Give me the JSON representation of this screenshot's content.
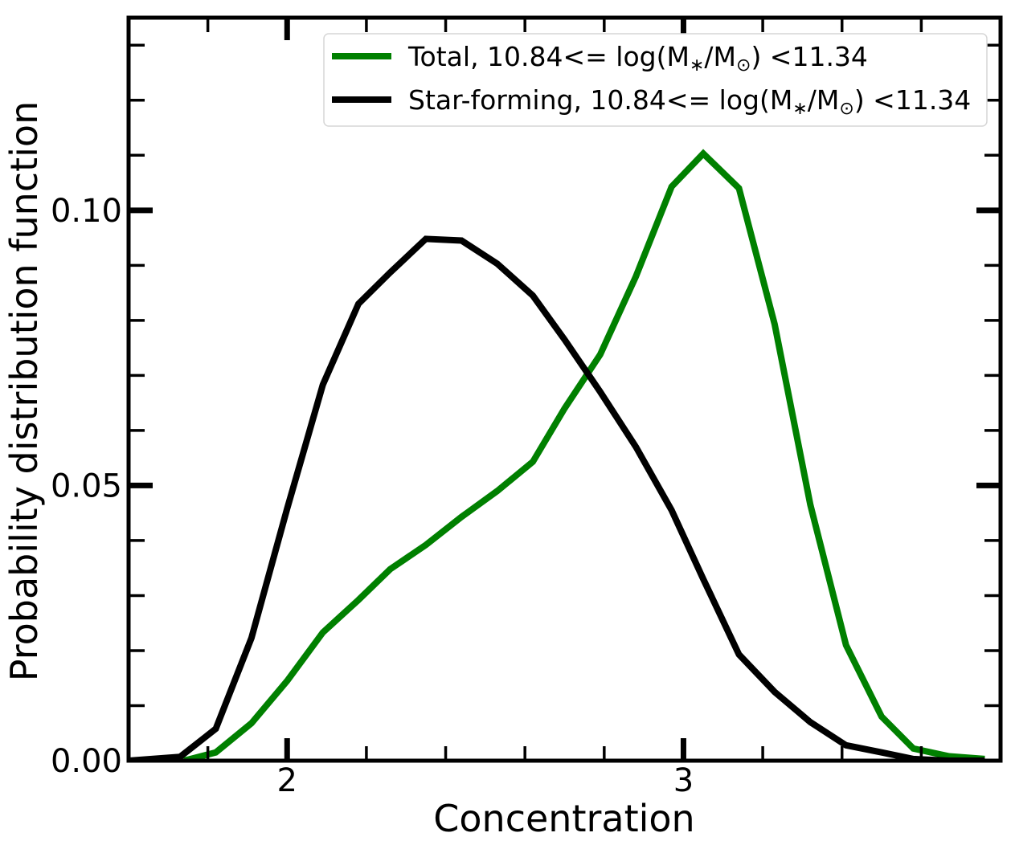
{
  "chart_data": {
    "type": "line",
    "title": "",
    "xlabel": "Concentration",
    "ylabel": "Probability distribution function",
    "xlim": [
      1.6,
      3.8
    ],
    "ylim": [
      0.0,
      0.135
    ],
    "grid": false,
    "legend_position": "top-right",
    "x_ticks": [
      2,
      3
    ],
    "x_tick_labels": [
      "2",
      "3"
    ],
    "y_ticks": [
      0.0,
      0.05,
      0.1
    ],
    "y_tick_labels": [
      "0.00",
      "0.05",
      "0.10"
    ],
    "series": [
      {
        "name": "Total, 10.84<= log(M*/M⊙) <11.34",
        "legend_prefix": "Total, 10.84<= log(M",
        "color": "#008000",
        "x": [
          1.74,
          1.82,
          1.91,
          2.0,
          2.09,
          2.18,
          2.26,
          2.35,
          2.44,
          2.53,
          2.62,
          2.7,
          2.79,
          2.88,
          2.97,
          3.05,
          3.14,
          3.23,
          3.32,
          3.41,
          3.5,
          3.58,
          3.67,
          3.76
        ],
        "y": [
          0.0,
          0.0015,
          0.0068,
          0.0145,
          0.0233,
          0.0292,
          0.0348,
          0.0392,
          0.0443,
          0.049,
          0.0543,
          0.064,
          0.0738,
          0.088,
          0.1043,
          0.1103,
          0.104,
          0.0793,
          0.0465,
          0.021,
          0.008,
          0.0022,
          0.0008,
          0.0003
        ]
      },
      {
        "name": "Star-forming, 10.84<= log(M*/M⊙) <11.34",
        "legend_prefix": "Star-forming, 10.84<= log(M",
        "color": "#000000",
        "x": [
          1.6,
          1.73,
          1.82,
          1.91,
          2.0,
          2.09,
          2.18,
          2.26,
          2.35,
          2.44,
          2.53,
          2.62,
          2.7,
          2.79,
          2.88,
          2.97,
          3.05,
          3.14,
          3.23,
          3.32,
          3.41,
          3.5,
          3.58,
          3.67,
          3.76
        ],
        "y": [
          0.0,
          0.0007,
          0.0058,
          0.0223,
          0.0458,
          0.0683,
          0.083,
          0.0887,
          0.0948,
          0.0945,
          0.0903,
          0.0845,
          0.0765,
          0.067,
          0.057,
          0.0455,
          0.033,
          0.0193,
          0.0125,
          0.007,
          0.0028,
          0.0015,
          0.0003,
          0.0,
          0.0
        ]
      }
    ]
  }
}
